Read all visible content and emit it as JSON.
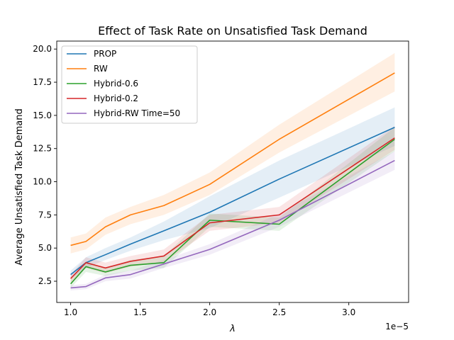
{
  "chart_data": {
    "type": "line",
    "title": "Effect of Task Rate on Unsatisfied Task Demand",
    "xlabel": "λ",
    "ylabel": "Average Unsatisfied Task Demand",
    "x_offset_label": "1e−5",
    "xlim": [
      0.9,
      3.43
    ],
    "ylim": [
      0.9,
      20.6
    ],
    "xticks": [
      1.0,
      1.5,
      2.0,
      2.5,
      3.0
    ],
    "xtick_labels": [
      "1.0",
      "1.5",
      "2.0",
      "2.5",
      "3.0"
    ],
    "yticks": [
      2.5,
      5.0,
      7.5,
      10.0,
      12.5,
      15.0,
      17.5,
      20.0
    ],
    "ytick_labels": [
      "2.5",
      "5.0",
      "7.5",
      "10.0",
      "12.5",
      "15.0",
      "17.5",
      "20.0"
    ],
    "grid": false,
    "legend_position": "upper-left",
    "series": [
      {
        "name": "PROP",
        "color": "#1f77b4",
        "x": [
          1.0,
          1.11,
          1.25,
          1.43,
          1.67,
          2.0,
          2.5,
          3.33
        ],
        "values": [
          3.0,
          3.9,
          4.5,
          5.3,
          6.3,
          7.7,
          10.2,
          14.1
        ],
        "lower": [
          2.7,
          3.5,
          4.1,
          4.8,
          5.6,
          6.5,
          8.8,
          12.7
        ],
        "upper": [
          3.3,
          4.3,
          5.0,
          5.8,
          7.0,
          8.9,
          11.6,
          15.6
        ]
      },
      {
        "name": "RW",
        "color": "#ff7f0e",
        "x": [
          1.0,
          1.11,
          1.25,
          1.43,
          1.67,
          2.0,
          2.5,
          3.33
        ],
        "values": [
          5.2,
          5.5,
          6.6,
          7.5,
          8.2,
          9.8,
          13.2,
          18.2
        ],
        "lower": [
          4.6,
          4.9,
          6.0,
          6.8,
          7.5,
          9.0,
          12.2,
          16.8
        ],
        "upper": [
          5.8,
          6.1,
          7.3,
          8.1,
          9.0,
          10.7,
          14.3,
          19.7
        ]
      },
      {
        "name": "Hybrid-0.6",
        "color": "#2ca02c",
        "x": [
          1.0,
          1.11,
          1.25,
          1.43,
          1.67,
          2.0,
          2.5,
          3.33
        ],
        "values": [
          2.3,
          3.6,
          3.2,
          3.7,
          3.9,
          7.1,
          6.8,
          13.2
        ],
        "lower": [
          2.0,
          3.2,
          2.9,
          3.3,
          3.5,
          6.6,
          6.3,
          12.3
        ],
        "upper": [
          2.6,
          4.0,
          3.5,
          4.1,
          4.4,
          7.6,
          7.3,
          14.1
        ]
      },
      {
        "name": "Hybrid-0.2",
        "color": "#d62728",
        "x": [
          1.0,
          1.11,
          1.25,
          1.43,
          1.67,
          2.0,
          2.5,
          3.33
        ],
        "values": [
          2.7,
          3.9,
          3.5,
          4.0,
          4.4,
          6.9,
          7.5,
          13.3
        ],
        "lower": [
          2.4,
          3.5,
          3.1,
          3.6,
          3.9,
          6.3,
          6.9,
          12.4
        ],
        "upper": [
          3.0,
          4.3,
          3.9,
          4.4,
          4.9,
          7.5,
          8.1,
          14.2
        ]
      },
      {
        "name": "Hybrid-RW Time=50",
        "color": "#9467bd",
        "x": [
          1.0,
          1.11,
          1.25,
          1.43,
          1.67,
          2.0,
          2.5,
          3.33
        ],
        "values": [
          2.0,
          2.1,
          2.75,
          3.0,
          3.8,
          4.9,
          7.1,
          11.6
        ],
        "lower": [
          1.8,
          1.9,
          2.5,
          2.7,
          3.5,
          4.5,
          6.6,
          10.9
        ],
        "upper": [
          2.2,
          2.3,
          3.0,
          3.3,
          4.1,
          5.3,
          7.6,
          12.3
        ]
      }
    ]
  }
}
